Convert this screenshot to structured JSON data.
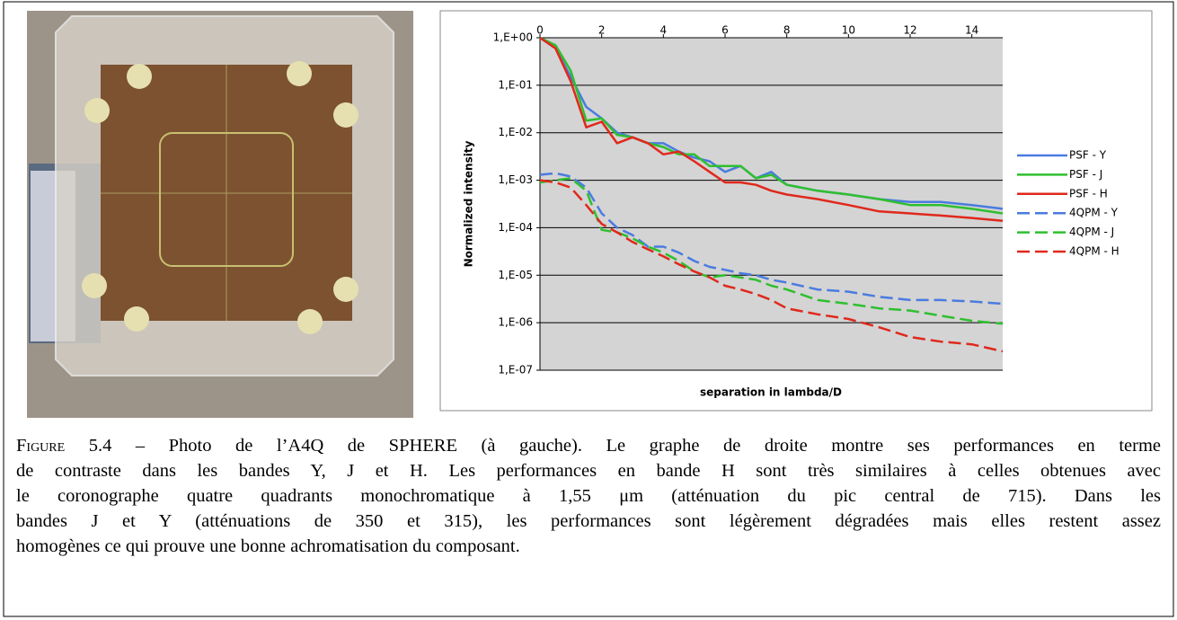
{
  "chart_data": {
    "type": "line",
    "x_label": "separation in lambda/D",
    "y_label": "Normalized intensity",
    "x": [
      0,
      0.5,
      1,
      1.5,
      2,
      2.5,
      3,
      3.5,
      4,
      4.5,
      5,
      5.5,
      6,
      6.5,
      7,
      7.5,
      8,
      9,
      10,
      11,
      12,
      13,
      14,
      15
    ],
    "series": [
      {
        "name": "PSF - Y",
        "color": "#4a7be0",
        "dash": false,
        "values": [
          1,
          0.6,
          0.15,
          0.035,
          0.02,
          0.01,
          0.008,
          0.006,
          0.006,
          0.004,
          0.003,
          0.0025,
          0.0015,
          0.002,
          0.0011,
          0.0015,
          0.0008,
          0.0006,
          0.0005,
          0.0004,
          0.00035,
          0.00035,
          0.0003,
          0.00025
        ]
      },
      {
        "name": "PSF - J",
        "color": "#2fbf2f",
        "dash": false,
        "values": [
          1,
          0.7,
          0.2,
          0.018,
          0.02,
          0.009,
          0.008,
          0.006,
          0.005,
          0.0035,
          0.0035,
          0.002,
          0.002,
          0.002,
          0.0011,
          0.0013,
          0.0008,
          0.0006,
          0.0005,
          0.0004,
          0.0003,
          0.0003,
          0.00025,
          0.0002
        ]
      },
      {
        "name": "PSF - H",
        "color": "#e0281c",
        "dash": false,
        "values": [
          1,
          0.6,
          0.12,
          0.013,
          0.017,
          0.006,
          0.008,
          0.006,
          0.0035,
          0.004,
          0.0025,
          0.0015,
          0.0009,
          0.0009,
          0.0008,
          0.0006,
          0.0005,
          0.0004,
          0.0003,
          0.00022,
          0.0002,
          0.00018,
          0.00016,
          0.00014
        ]
      },
      {
        "name": "4QPM - Y",
        "color": "#4a7be0",
        "dash": true,
        "values": [
          0.0013,
          0.0014,
          0.0012,
          0.0007,
          0.0002,
          0.0001,
          7e-05,
          4e-05,
          4e-05,
          3e-05,
          2e-05,
          1.5e-05,
          1.3e-05,
          1.1e-05,
          1e-05,
          8e-06,
          7e-06,
          5e-06,
          4.5e-06,
          3.5e-06,
          3e-06,
          3e-06,
          2.8e-06,
          2.5e-06
        ]
      },
      {
        "name": "4QPM - J",
        "color": "#2fbf2f",
        "dash": true,
        "values": [
          0.0009,
          0.001,
          0.0011,
          0.0006,
          9e-05,
          8e-05,
          6e-05,
          4e-05,
          3e-05,
          2e-05,
          1.2e-05,
          9e-06,
          1e-05,
          9e-06,
          8e-06,
          6e-06,
          5e-06,
          3e-06,
          2.5e-06,
          2e-06,
          1.8e-06,
          1.4e-06,
          1.1e-06,
          9.5e-07
        ]
      },
      {
        "name": "4QPM - H",
        "color": "#e0281c",
        "dash": true,
        "values": [
          0.001,
          0.0009,
          0.0007,
          0.0003,
          0.00012,
          8e-05,
          5e-05,
          3.5e-05,
          2.5e-05,
          1.7e-05,
          1.2e-05,
          9e-06,
          6e-06,
          5e-06,
          4e-06,
          3e-06,
          2e-06,
          1.5e-06,
          1.2e-06,
          8e-07,
          5e-07,
          4e-07,
          3.5e-07,
          2.5e-07
        ]
      }
    ],
    "xlim": [
      0,
      15
    ],
    "xticks": [
      0,
      2,
      4,
      6,
      8,
      10,
      12,
      14
    ],
    "ylim": [
      1e-07,
      1
    ],
    "yscale": "log",
    "yticks": [
      {
        "value": 1,
        "label": "1,E+00"
      },
      {
        "value": 0.1,
        "label": "1,E-01"
      },
      {
        "value": 0.01,
        "label": "1,E-02"
      },
      {
        "value": 0.001,
        "label": "1,E-03"
      },
      {
        "value": 0.0001,
        "label": "1,E-04"
      },
      {
        "value": 1e-05,
        "label": "1,E-05"
      },
      {
        "value": 1e-06,
        "label": "1,E-06"
      },
      {
        "value": 1e-07,
        "label": "1,E-07"
      }
    ],
    "grid": true,
    "legend": "right"
  },
  "caption": {
    "label": "Figure 5.4 –",
    "lines": [
      "Photo de l’A4Q de SPHERE (à gauche). Le graphe de droite montre ses performances en terme",
      "de contraste dans les bandes Y, J et H. Les performances en bande H sont très similaires à celles obtenues avec",
      "le coronographe quatre quadrants monochromatique à 1,55 μm (atténuation du pic central de 715). Dans les",
      "bandes J et Y (atténuations de 350 et 315), les performances sont légèrement dégradées mais elles restent assez",
      "homogènes ce qui prouve une bonne achromatisation du composant."
    ]
  }
}
